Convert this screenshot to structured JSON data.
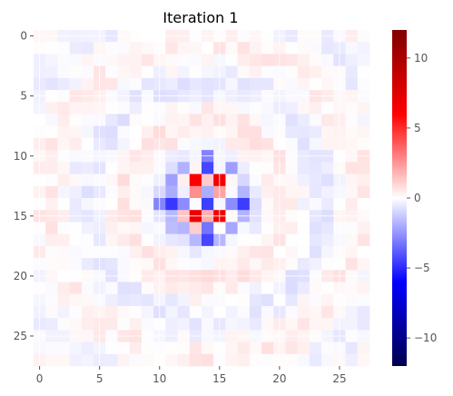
{
  "chart_data": {
    "type": "heatmap",
    "title": "Iteration 1",
    "grid": true,
    "n_rows": 28,
    "n_cols": 28,
    "x_ticks": [
      0,
      5,
      10,
      15,
      20,
      25
    ],
    "y_ticks": [
      0,
      5,
      10,
      15,
      20,
      25
    ],
    "colorbar": {
      "colormap": "seismic",
      "min": -12,
      "max": 12,
      "ticks": [
        10,
        5,
        0,
        -5,
        -10
      ],
      "tick_labels": [
        "10",
        "5",
        "0",
        "−5",
        "−10"
      ]
    },
    "pattern": "symmetric ring pattern centered near (14,14); strongest red values ~6 at (13,12),(15,12),(13,15),(15,15); blue ~-3 at center and along the central cross"
  }
}
